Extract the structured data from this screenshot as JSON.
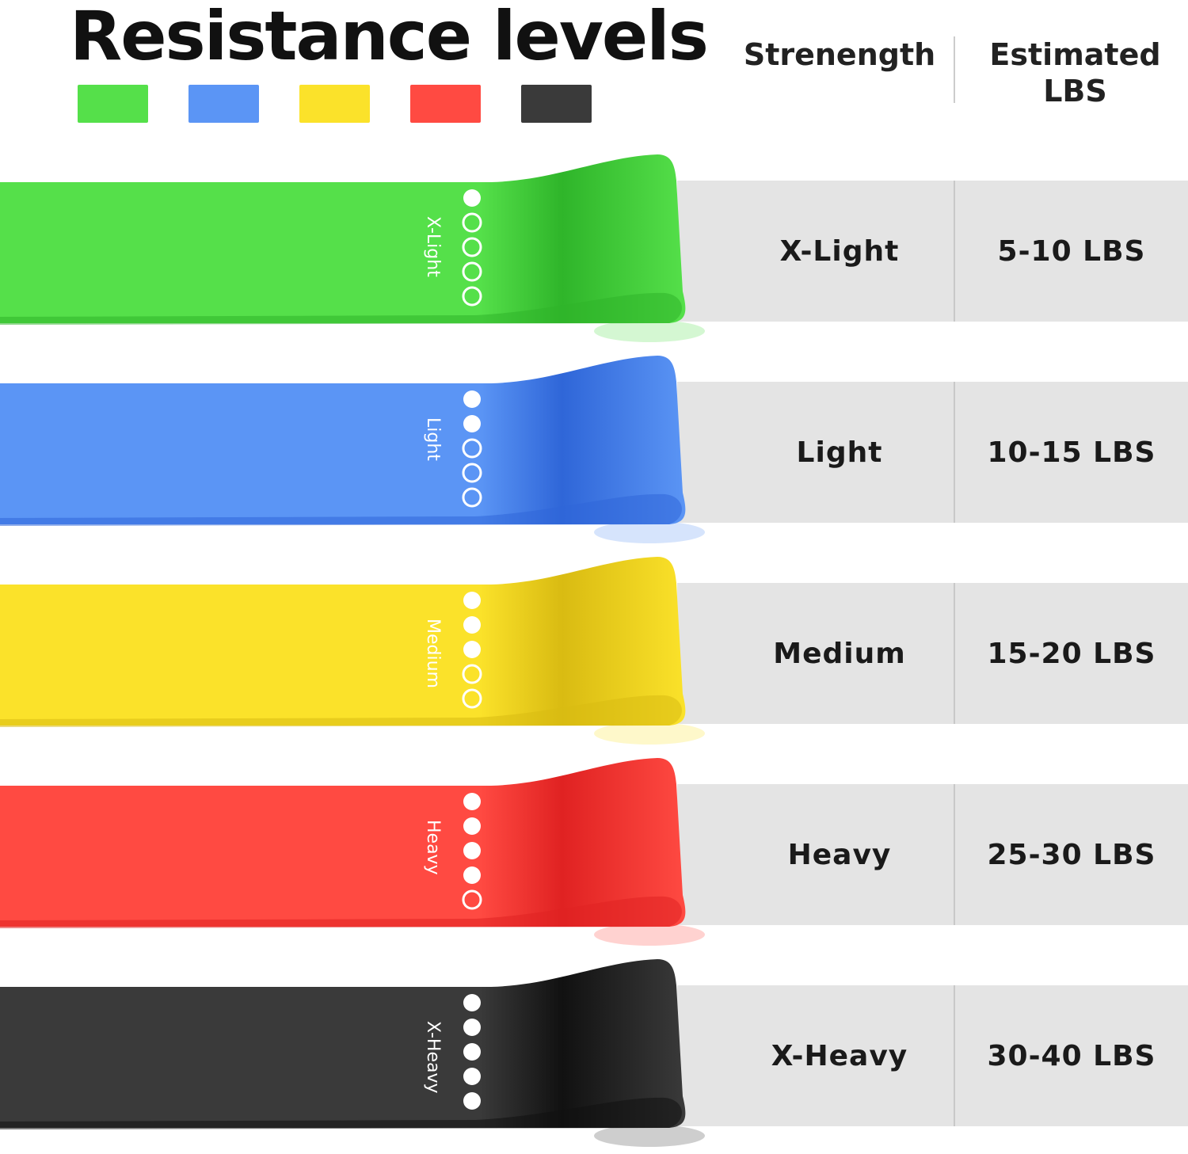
{
  "title": "Resistance levels",
  "headers": {
    "strength": "Strenength",
    "lbs": "Estimated\nLBS"
  },
  "bands": [
    {
      "level": "X-Light",
      "lbs": "5-10  LBS",
      "color": "#55e04a",
      "dark": "#2fb52a",
      "filled_dots": 1
    },
    {
      "level": "Light",
      "lbs": "10-15 LBS",
      "color": "#5b95f5",
      "dark": "#2f66d8",
      "filled_dots": 2
    },
    {
      "level": "Medium",
      "lbs": "15-20 LBS",
      "color": "#fbe22a",
      "dark": "#d9bb12",
      "filled_dots": 3
    },
    {
      "level": "Heavy",
      "lbs": "25-30 LBS",
      "color": "#ff4a42",
      "dark": "#e02222",
      "filled_dots": 4
    },
    {
      "level": "X-Heavy",
      "lbs": "30-40 LBS",
      "color": "#3a3a3a",
      "dark": "#111111",
      "filled_dots": 5
    }
  ],
  "total_dots": 5
}
